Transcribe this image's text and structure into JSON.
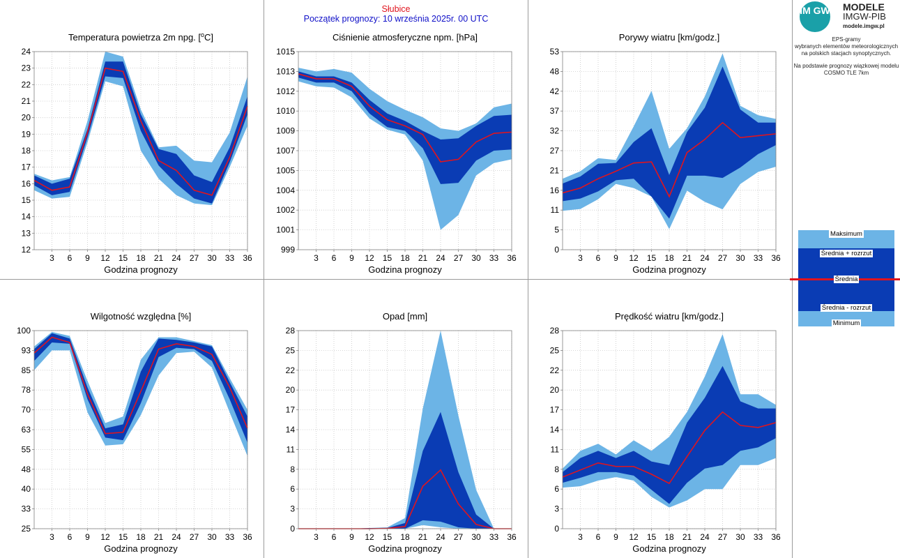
{
  "header": {
    "station": "Słubice",
    "forecast_start": "Początek prognozy: 10 września 2025r. 00 UTC"
  },
  "logo": {
    "mark": "IM GW",
    "line1": "MODELE",
    "line2": "IMGW-PIB",
    "line3": "modele.imgw.pl"
  },
  "description": {
    "line1": "EPS-gramy",
    "line2": "wybranych elementów meteorologicznych",
    "line3": "na polskich stacjach  synoptycznych.",
    "line4": "Na podstawie prognozy wiązkowej modelu",
    "line5": "COSMO TLE 7km"
  },
  "legend": {
    "max": "Maksimum",
    "mean_plus": "Średnia + rozrzut",
    "mean": "Średnia",
    "mean_minus": "Średnia - rozrzut",
    "min": "Minimum"
  },
  "colors": {
    "outer_band": "#6cb4e6",
    "inner_band": "#0a3cb4",
    "mean_line": "#e0141e",
    "grid": "#c8c8c8"
  },
  "chart_data": [
    {
      "type": "area",
      "title": "Temperatura powietrza 2m npg. [",
      "title_sup": "o",
      "title_suffix": "C]",
      "xlabel": "Godzina prognozy",
      "x": [
        0,
        3,
        6,
        9,
        12,
        15,
        18,
        21,
        24,
        27,
        30,
        33,
        36
      ],
      "xticks": [
        3,
        6,
        9,
        12,
        15,
        18,
        21,
        24,
        27,
        30,
        33,
        36
      ],
      "ylim": [
        12,
        24
      ],
      "yticks": [
        "12",
        "13",
        "14",
        "15",
        "16",
        "17",
        "18",
        "19",
        "20",
        "21",
        "22",
        "23",
        "24"
      ],
      "max": [
        16.6,
        16.2,
        16.4,
        19.8,
        24.0,
        23.7,
        20.5,
        18.2,
        18.3,
        17.4,
        17.3,
        19.1,
        22.5
      ],
      "mean_plus": [
        16.5,
        16.0,
        16.3,
        19.3,
        23.4,
        23.4,
        20.2,
        18.1,
        17.8,
        16.5,
        16.1,
        18.2,
        21.3
      ],
      "mean": [
        16.2,
        15.6,
        15.8,
        19.1,
        23.0,
        22.8,
        19.8,
        17.4,
        16.8,
        15.6,
        15.3,
        17.6,
        20.7
      ],
      "mean_minus": [
        15.9,
        15.3,
        15.5,
        18.8,
        22.5,
        22.4,
        19.2,
        17.1,
        16.0,
        15.1,
        14.8,
        17.3,
        20.2
      ],
      "min": [
        15.6,
        15.1,
        15.2,
        18.5,
        22.2,
        21.9,
        18.0,
        16.3,
        15.3,
        14.8,
        14.7,
        17.0,
        19.5
      ]
    },
    {
      "type": "area",
      "title": "Ciśnienie atmosferyczne npm. [hPa]",
      "xlabel": "Godzina prognozy",
      "x": [
        0,
        3,
        6,
        9,
        12,
        15,
        18,
        21,
        24,
        27,
        30,
        33,
        36
      ],
      "xticks": [
        3,
        6,
        9,
        12,
        15,
        18,
        21,
        24,
        27,
        30,
        33,
        36
      ],
      "ylim": [
        999,
        1015
      ],
      "yticks": [
        "999",
        "1001",
        "1002",
        "1004",
        "1005",
        "1007",
        "1009",
        "1010",
        "1012",
        "1013",
        "1015"
      ],
      "max": [
        1013.7,
        1013.4,
        1013.6,
        1013.3,
        1012.0,
        1011.0,
        1010.3,
        1009.7,
        1008.8,
        1008.6,
        1009.2,
        1010.5,
        1010.8
      ],
      "mean_plus": [
        1013.4,
        1013.0,
        1013.0,
        1012.5,
        1011.1,
        1010.0,
        1009.4,
        1008.6,
        1007.9,
        1008.0,
        1009.0,
        1009.8,
        1009.9
      ],
      "mean": [
        1013.2,
        1012.8,
        1012.8,
        1012.2,
        1010.6,
        1009.5,
        1009.0,
        1008.3,
        1006.1,
        1006.3,
        1007.7,
        1008.4,
        1008.5
      ],
      "mean_minus": [
        1012.9,
        1012.5,
        1012.5,
        1011.8,
        1010.0,
        1008.9,
        1008.6,
        1007.2,
        1004.3,
        1004.4,
        1006.2,
        1007.0,
        1007.1
      ],
      "min": [
        1012.6,
        1012.2,
        1012.1,
        1011.3,
        1009.6,
        1008.7,
        1008.3,
        1006.2,
        1000.6,
        1001.8,
        1005.0,
        1006.0,
        1006.3
      ]
    },
    {
      "type": "area",
      "title": "Porywy wiatru [km/godz.]",
      "xlabel": "Godzina prognozy",
      "x": [
        0,
        3,
        6,
        9,
        12,
        15,
        18,
        21,
        24,
        27,
        30,
        33,
        36
      ],
      "xticks": [
        3,
        6,
        9,
        12,
        15,
        18,
        21,
        24,
        27,
        30,
        33,
        36
      ],
      "ylim": [
        0,
        53
      ],
      "yticks": [
        "0",
        "5",
        "11",
        "16",
        "21",
        "27",
        "32",
        "37",
        "42",
        "48",
        "53"
      ],
      "max": [
        19.0,
        21.0,
        24.5,
        24.0,
        33.0,
        42.5,
        27.0,
        32.5,
        41.0,
        52.5,
        38.5,
        36.0,
        35.0
      ],
      "mean_plus": [
        17.7,
        19.6,
        23.0,
        23.2,
        28.8,
        32.5,
        20.0,
        31.5,
        38.0,
        49.0,
        37.5,
        34.0,
        34.0
      ],
      "mean": [
        15.2,
        16.5,
        19.0,
        21.0,
        23.2,
        23.5,
        14.2,
        26.0,
        29.5,
        34.0,
        30.0,
        30.5,
        31.0
      ],
      "mean_minus": [
        13.0,
        13.7,
        15.6,
        18.6,
        19.0,
        14.2,
        8.3,
        19.8,
        19.8,
        19.2,
        22.0,
        25.6,
        28.0
      ],
      "min": [
        10.4,
        10.9,
        13.5,
        17.6,
        16.5,
        14.2,
        5.5,
        15.8,
        12.8,
        10.8,
        17.6,
        20.8,
        22.2
      ]
    },
    {
      "type": "area",
      "title": "Wilgotność względna [%]",
      "xlabel": "Godzina prognozy",
      "x": [
        0,
        3,
        6,
        9,
        12,
        15,
        18,
        21,
        24,
        27,
        30,
        33,
        36
      ],
      "xticks": [
        3,
        6,
        9,
        12,
        15,
        18,
        21,
        24,
        27,
        30,
        33,
        36
      ],
      "ylim": [
        25,
        100
      ],
      "yticks": [
        "25",
        "33",
        "40",
        "48",
        "55",
        "63",
        "70",
        "78",
        "85",
        "93",
        "100"
      ],
      "max": [
        94.0,
        99.5,
        98.0,
        81.0,
        65.0,
        67.5,
        89.0,
        97.5,
        97.5,
        96.0,
        94.5,
        82.0,
        70.0
      ],
      "mean_plus": [
        93.0,
        99.0,
        97.0,
        78.5,
        63.0,
        64.5,
        84.5,
        97.0,
        96.5,
        95.5,
        94.0,
        80.5,
        67.5
      ],
      "mean": [
        91.5,
        97.5,
        95.5,
        76.0,
        61.0,
        61.5,
        77.0,
        93.0,
        95.0,
        94.0,
        91.0,
        78.5,
        63.0
      ],
      "mean_minus": [
        88.5,
        95.5,
        95.0,
        74.0,
        59.5,
        58.5,
        72.5,
        90.0,
        93.5,
        93.0,
        88.5,
        74.0,
        57.5
      ],
      "min": [
        85.0,
        92.5,
        92.5,
        69.0,
        56.5,
        57.0,
        68.0,
        83.0,
        91.5,
        92.0,
        86.0,
        69.0,
        52.5
      ]
    },
    {
      "type": "area",
      "title": "Opad [mm]",
      "xlabel": "Godzina prognozy",
      "x": [
        0,
        3,
        6,
        9,
        12,
        15,
        18,
        21,
        24,
        27,
        30,
        33,
        36
      ],
      "xticks": [
        3,
        6,
        9,
        12,
        15,
        18,
        21,
        24,
        27,
        30,
        33,
        36
      ],
      "ylim": [
        0,
        28
      ],
      "yticks": [
        "0",
        "3",
        "6",
        "8",
        "11",
        "14",
        "17",
        "20",
        "22",
        "25",
        "28"
      ],
      "max": [
        0,
        0,
        0,
        0,
        0.1,
        0.2,
        1.5,
        17.0,
        28.0,
        16.0,
        5.5,
        0,
        0
      ],
      "mean_plus": [
        0,
        0,
        0,
        0,
        0.1,
        0.1,
        0.8,
        11.0,
        16.5,
        8.0,
        2.0,
        0,
        0
      ],
      "mean": [
        0,
        0,
        0,
        0,
        0,
        0.05,
        0.3,
        6.0,
        8.3,
        3.5,
        0.6,
        0,
        0
      ],
      "mean_minus": [
        0,
        0,
        0,
        0,
        0,
        0,
        0,
        1.2,
        1.0,
        0.2,
        0,
        0,
        0
      ],
      "min": [
        0,
        0,
        0,
        0,
        0,
        0,
        0,
        0.5,
        0.2,
        0,
        0,
        0,
        0
      ]
    },
    {
      "type": "area",
      "title": "Prędkość wiatru [km/godz.]",
      "xlabel": "Godzina prognozy",
      "x": [
        0,
        3,
        6,
        9,
        12,
        15,
        18,
        21,
        24,
        27,
        30,
        33,
        36
      ],
      "xticks": [
        3,
        6,
        9,
        12,
        15,
        18,
        21,
        24,
        27,
        30,
        33,
        36
      ],
      "ylim": [
        0,
        28
      ],
      "yticks": [
        "0",
        "3",
        "6",
        "8",
        "11",
        "14",
        "17",
        "20",
        "22",
        "25",
        "28"
      ],
      "max": [
        8.5,
        11.0,
        12.0,
        10.5,
        12.5,
        11.0,
        13.0,
        16.5,
        21.5,
        27.5,
        19.0,
        19.0,
        17.5
      ],
      "mean_plus": [
        8.0,
        10.0,
        11.0,
        10.0,
        11.0,
        9.5,
        9.0,
        15.0,
        18.5,
        23.0,
        18.0,
        17.0,
        17.0
      ],
      "mean": [
        7.3,
        8.3,
        9.3,
        8.8,
        8.8,
        7.7,
        6.4,
        10.2,
        13.9,
        16.5,
        14.6,
        14.3,
        15.0
      ],
      "mean_minus": [
        6.5,
        7.2,
        8.0,
        8.0,
        7.5,
        5.5,
        3.5,
        6.5,
        8.5,
        9.0,
        11.0,
        11.5,
        12.8
      ],
      "min": [
        5.8,
        6.0,
        6.8,
        7.3,
        6.8,
        4.5,
        3.0,
        4.0,
        5.6,
        5.6,
        9.0,
        9.0,
        10.0
      ]
    }
  ]
}
